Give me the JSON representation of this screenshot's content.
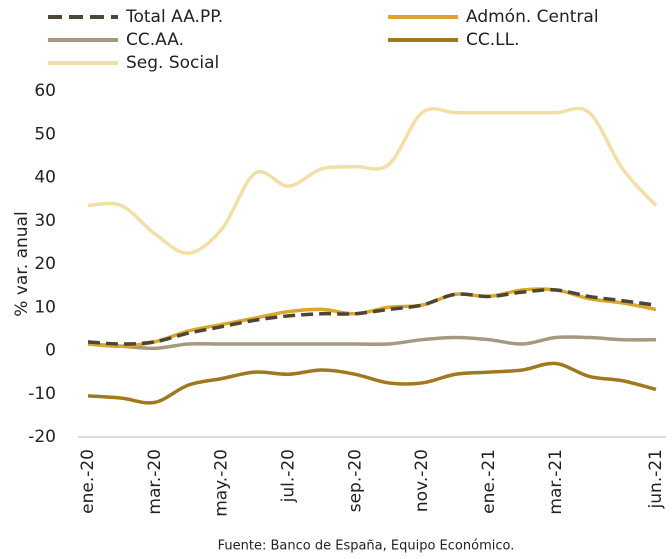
{
  "chart_data": {
    "type": "line",
    "y_label": "% var. anual",
    "source": "Fuente: Banco de España, Equipo Económico.",
    "categories": [
      "ene.-20",
      null,
      "mar.-20",
      null,
      "may.-20",
      null,
      "jul.-20",
      null,
      "sep.-20",
      null,
      "nov.-20",
      null,
      "ene.-21",
      null,
      "mar.-21",
      null,
      null,
      "jun.-21"
    ],
    "series": [
      {
        "name": "Total AA.PP.",
        "color": "#4d4536",
        "dashed": true,
        "values": [
          2,
          1.5,
          2,
          4,
          5.5,
          7,
          8,
          8.5,
          8.5,
          9.5,
          10.5,
          13,
          12.5,
          13.5,
          14,
          12.5,
          11.5,
          10.5
        ]
      },
      {
        "name": "Admón. Central",
        "color": "#d9a62e",
        "values": [
          1.5,
          1,
          2,
          4.5,
          6,
          7.5,
          9,
          9.5,
          8.5,
          10,
          10.5,
          13,
          12.5,
          14,
          14,
          12,
          11,
          9.5
        ]
      },
      {
        "name": "CC.AA.",
        "color": "#a39a7f",
        "values": [
          1.5,
          1,
          0.5,
          1.5,
          1.5,
          1.5,
          1.5,
          1.5,
          1.5,
          1.5,
          2.5,
          3,
          2.5,
          1.5,
          3,
          3,
          2.5,
          2.5
        ]
      },
      {
        "name": "CC.LL.",
        "color": "#a07820",
        "values": [
          -10.5,
          -11,
          -12,
          -8,
          -6.5,
          -5,
          -5.5,
          -4.5,
          -5.5,
          -7.5,
          -7.5,
          -5.5,
          -5,
          -4.5,
          -3,
          -6,
          -7,
          -9
        ]
      },
      {
        "name": "Seg. Social",
        "color": "#f2dfa7",
        "values": [
          33.5,
          33.5,
          27,
          22.5,
          28,
          41,
          38,
          42,
          42.5,
          43,
          55,
          55,
          55,
          55,
          55,
          55,
          42,
          33.5
        ]
      }
    ],
    "ylim": [
      -20,
      60
    ],
    "yticks": [
      -20,
      -10,
      0,
      10,
      20,
      30,
      40,
      50,
      60
    ]
  }
}
